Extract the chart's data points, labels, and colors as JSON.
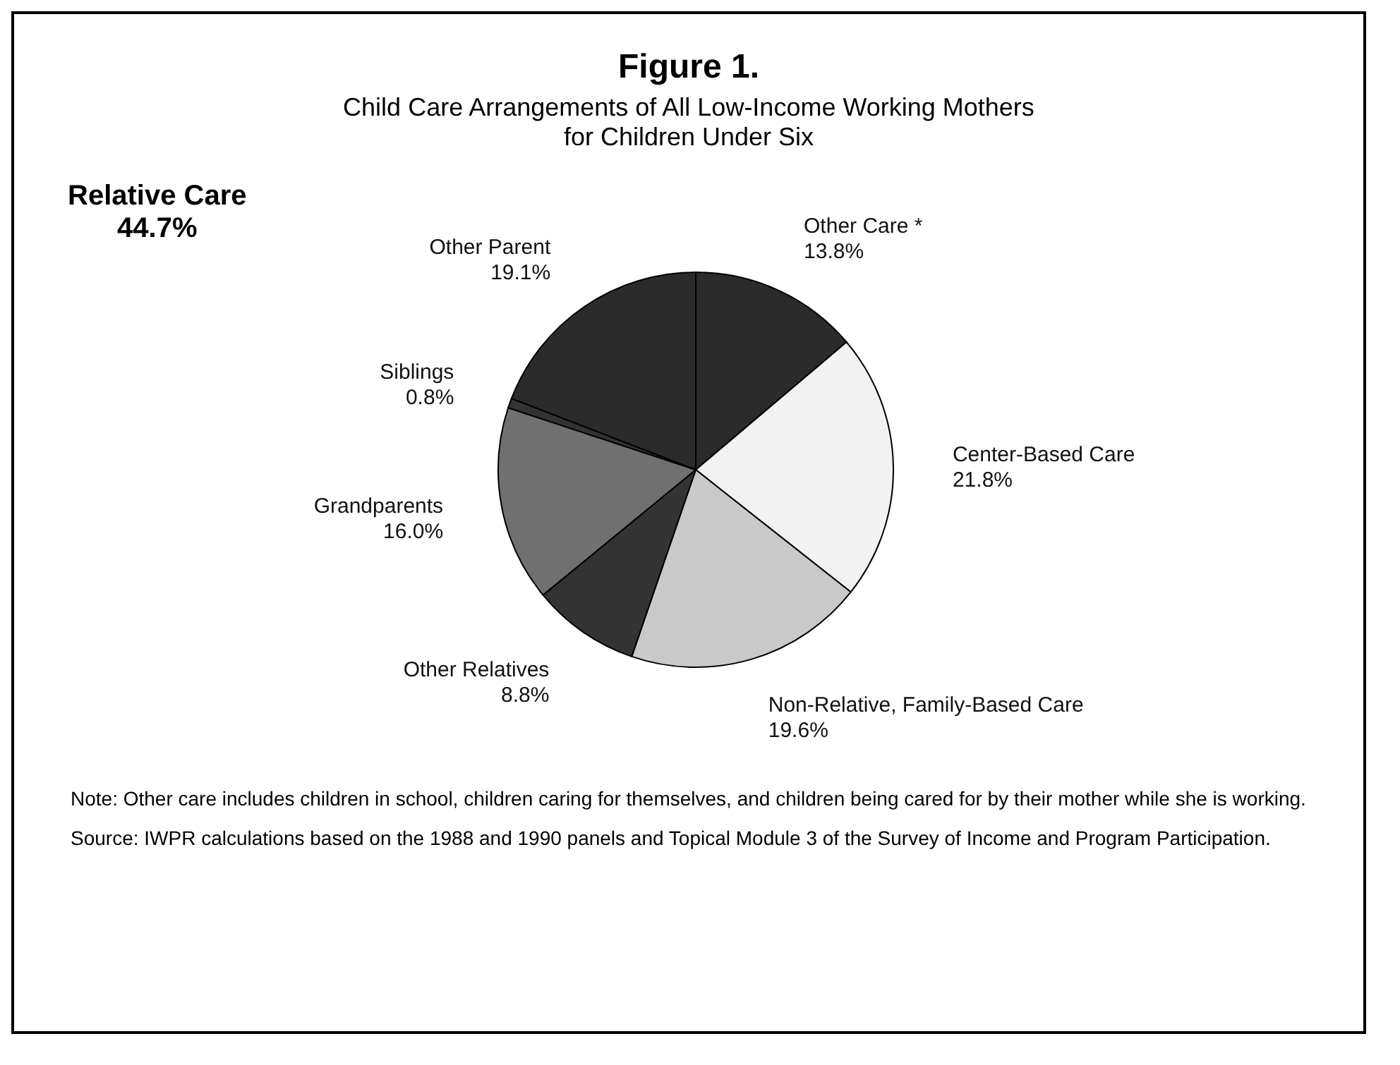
{
  "chart_data": {
    "type": "pie",
    "title": "Figure 1.",
    "subtitle": "Child Care Arrangements of All Low-Income Working Mothers\nfor Children Under Six",
    "categories": [
      "Other Care *",
      "Center-Based Care",
      "Non-Relative, Family-Based Care",
      "Other Relatives",
      "Grandparents",
      "Siblings",
      "Other Parent"
    ],
    "values": [
      13.8,
      21.8,
      19.6,
      8.8,
      16.0,
      0.8,
      19.1
    ],
    "value_labels": [
      "13.8%",
      "21.8%",
      "19.6%",
      "8.8%",
      "16.0%",
      "0.8%",
      "19.1%"
    ],
    "colors": [
      "#2b2b2b",
      "#f2f2f2",
      "#c9c9c9",
      "#333333",
      "#707070",
      "#333333",
      "#2b2b2b"
    ],
    "legend": false,
    "annotations": [
      "Relative Care\n44.7%",
      "Note:  Other care includes children in school, children caring for themselves, and children being cared for by their mother while she is working.",
      "Source:  IWPR calculations based on the 1988 and 1990 panels and Topical Module 3 of the Survey of Income and Program Participation."
    ]
  }
}
